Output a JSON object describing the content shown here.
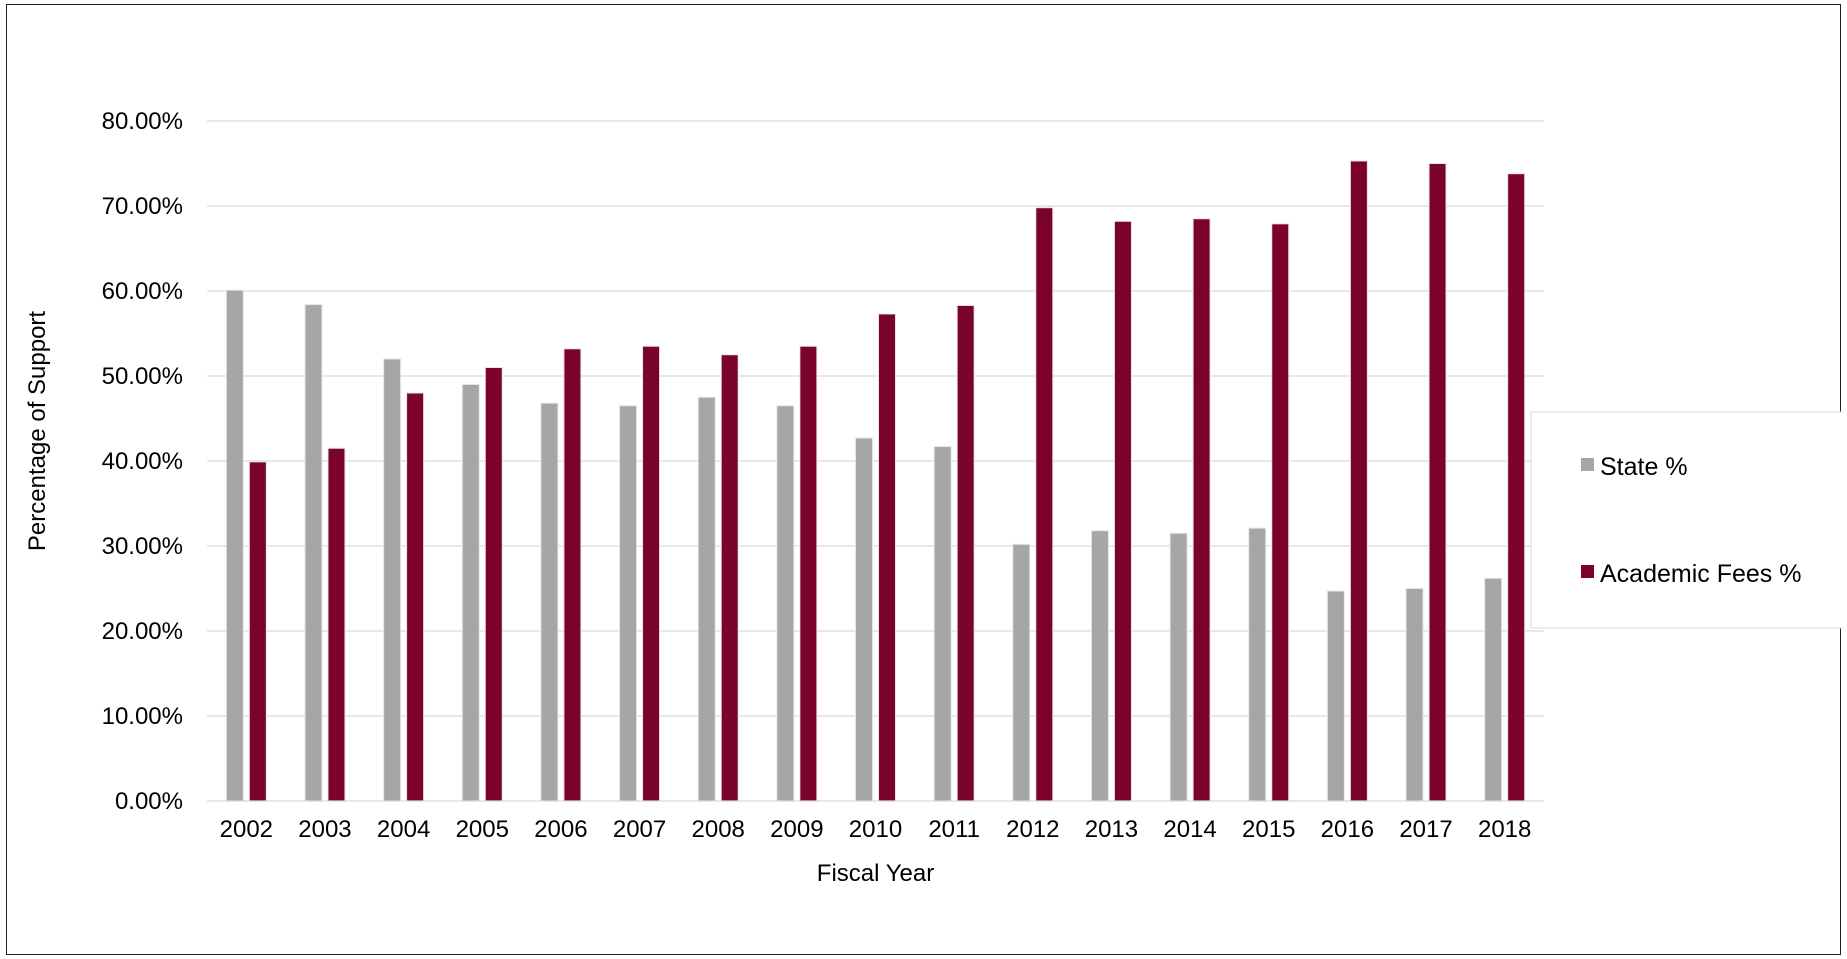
{
  "chart_data": {
    "type": "bar",
    "title": "",
    "xlabel": "Fiscal Year",
    "ylabel": "Percentage of Support",
    "ylim": [
      0,
      80
    ],
    "ytick_step": 10,
    "ytick_labels": [
      "0.00%",
      "10.00%",
      "20.00%",
      "30.00%",
      "40.00%",
      "50.00%",
      "60.00%",
      "70.00%",
      "80.00%"
    ],
    "grid": true,
    "legend_position": "right",
    "categories": [
      "2002",
      "2003",
      "2004",
      "2005",
      "2006",
      "2007",
      "2008",
      "2009",
      "2010",
      "2011",
      "2012",
      "2013",
      "2014",
      "2015",
      "2016",
      "2017",
      "2018"
    ],
    "series": [
      {
        "name": "State %",
        "color": "#a6a6a6",
        "values": [
          60.1,
          58.4,
          52.0,
          49.0,
          46.8,
          46.5,
          47.5,
          46.5,
          42.7,
          41.7,
          30.2,
          31.8,
          31.5,
          32.1,
          24.7,
          25.0,
          26.2
        ]
      },
      {
        "name": "Academic Fees %",
        "color": "#7b0229",
        "values": [
          39.9,
          41.5,
          48.0,
          51.0,
          53.2,
          53.5,
          52.5,
          53.5,
          57.3,
          58.3,
          69.8,
          68.2,
          68.5,
          67.9,
          75.3,
          75.0,
          73.8
        ]
      }
    ]
  }
}
